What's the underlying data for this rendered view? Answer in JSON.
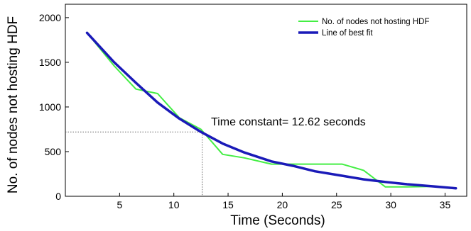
{
  "chart_data": {
    "type": "line",
    "title": "",
    "xlabel": "Time (Seconds)",
    "ylabel": "No. of nodes not hosting HDF",
    "xlim": [
      0,
      37
    ],
    "ylim": [
      0,
      2150
    ],
    "xticks": [
      5,
      10,
      15,
      20,
      25,
      30,
      35
    ],
    "yticks": [
      0,
      500,
      1000,
      1500,
      2000
    ],
    "grid": false,
    "legend_position": "top-right",
    "series": [
      {
        "name": "No. of nodes not hosting HDF",
        "color": "#44ee44",
        "line_width": 2,
        "x": [
          2,
          4.5,
          6.5,
          8.5,
          10.5,
          12.5,
          14.5,
          16.5,
          19,
          21,
          23,
          25.5,
          27.5,
          29.5,
          31.5,
          34,
          36
        ],
        "y": [
          1830,
          1460,
          1200,
          1150,
          880,
          750,
          470,
          430,
          360,
          360,
          360,
          360,
          290,
          105,
          105,
          110,
          90
        ]
      },
      {
        "name": "Line of best fit",
        "color": "#1a1ab8",
        "line_width": 3.5,
        "x": [
          2,
          4.5,
          6.5,
          8.5,
          10.5,
          12.5,
          14.5,
          16.5,
          19,
          21,
          23,
          25.5,
          27.5,
          29.5,
          31.5,
          34,
          36
        ],
        "y": [
          1830,
          1500,
          1270,
          1050,
          870,
          720,
          590,
          490,
          390,
          340,
          280,
          230,
          190,
          160,
          135,
          110,
          90
        ]
      }
    ],
    "annotations": [
      {
        "text": "Time constant= 12.62 seconds",
        "marker_x": 12.62,
        "marker_y": 720
      }
    ]
  }
}
